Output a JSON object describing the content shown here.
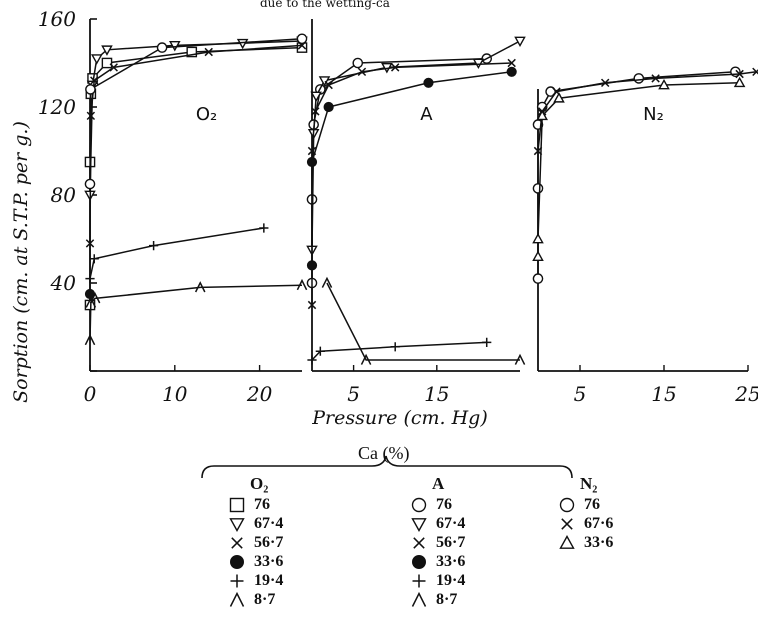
{
  "header_fragment": "due to the wetting-ca",
  "chart_data": {
    "type": "scatter",
    "ylabel": "Sorption (cm. at S.T.P. per g.)",
    "xlabel": "Pressure (cm. Hg)",
    "ylim": [
      0,
      160
    ],
    "yticks": [
      0,
      40,
      80,
      120,
      160
    ],
    "grid": false,
    "panels": [
      {
        "label": "O₂",
        "gas": "O2",
        "xlim": [
          0,
          25
        ],
        "xticks": [
          0,
          10,
          20
        ],
        "series": [
          {
            "name": "76",
            "marker": "square",
            "points": [
              [
                0,
                30
              ],
              [
                0,
                95
              ],
              [
                0.1,
                126
              ],
              [
                0.3,
                133
              ],
              [
                2,
                140
              ],
              [
                12,
                145
              ],
              [
                25,
                147
              ]
            ]
          },
          {
            "name": "67·4",
            "marker": "triangle-down",
            "points": [
              [
                0,
                80
              ],
              [
                0.3,
                130
              ],
              [
                0.8,
                142
              ],
              [
                2,
                146
              ],
              [
                10,
                148
              ],
              [
                18,
                149
              ],
              [
                25,
                150
              ]
            ]
          },
          {
            "name": "56·7",
            "marker": "cross",
            "points": [
              [
                0,
                58
              ],
              [
                0.1,
                116
              ],
              [
                0.5,
                132
              ],
              [
                2.8,
                138
              ],
              [
                14,
                145
              ],
              [
                25,
                148
              ]
            ]
          },
          {
            "name": "33·6",
            "marker": "filled-circle",
            "points": [
              [
                0,
                35
              ]
            ]
          },
          {
            "name": "19·4",
            "marker": "plus",
            "points": [
              [
                0,
                42
              ],
              [
                0.5,
                51
              ],
              [
                7.5,
                57
              ],
              [
                20.5,
                65
              ]
            ]
          },
          {
            "name": "8·7",
            "marker": "lambda",
            "points": [
              [
                0,
                14
              ],
              [
                0.1,
                31
              ],
              [
                0.6,
                33
              ],
              [
                13,
                38
              ],
              [
                25,
                39
              ]
            ]
          },
          {
            "name": "76",
            "marker": "circle",
            "points": [
              [
                0,
                85
              ],
              [
                0.05,
                128
              ],
              [
                8.5,
                147
              ],
              [
                25,
                151
              ]
            ]
          }
        ]
      },
      {
        "label": "A",
        "gas": "A",
        "xlim": [
          0,
          25
        ],
        "xticks": [
          5,
          15
        ],
        "series": [
          {
            "name": "76",
            "marker": "circle",
            "points": [
              [
                0,
                40
              ],
              [
                0,
                78
              ],
              [
                0.2,
                112
              ],
              [
                1,
                128
              ],
              [
                5.5,
                140
              ],
              [
                21,
                142
              ]
            ]
          },
          {
            "name": "67·4",
            "marker": "triangle-down",
            "points": [
              [
                0,
                55
              ],
              [
                0.2,
                108
              ],
              [
                0.5,
                125
              ],
              [
                1.5,
                132
              ],
              [
                9,
                138
              ],
              [
                20,
                140
              ],
              [
                25,
                150
              ]
            ]
          },
          {
            "name": "56·7",
            "marker": "cross",
            "points": [
              [
                0,
                30
              ],
              [
                0,
                100
              ],
              [
                0.4,
                118
              ],
              [
                2,
                130
              ],
              [
                6,
                136
              ],
              [
                10,
                138
              ],
              [
                24,
                140
              ]
            ]
          },
          {
            "name": "33·6",
            "marker": "filled-circle",
            "points": [
              [
                0,
                48
              ],
              [
                0,
                95
              ],
              [
                2,
                120
              ],
              [
                14,
                131
              ],
              [
                24,
                136
              ]
            ]
          },
          {
            "name": "19·4",
            "marker": "plus",
            "points": [
              [
                0,
                5
              ],
              [
                1,
                9
              ],
              [
                10,
                11
              ],
              [
                21,
                13
              ]
            ]
          },
          {
            "name": "8·7",
            "marker": "lambda",
            "points": [
              [
                1.8,
                40
              ],
              [
                6.5,
                5
              ],
              [
                25,
                5
              ]
            ]
          }
        ]
      },
      {
        "label": "N₂",
        "gas": "N2",
        "xlim": [
          0,
          25
        ],
        "xticks": [
          5,
          15,
          25
        ],
        "series": [
          {
            "name": "76",
            "marker": "circle",
            "points": [
              [
                0,
                42
              ],
              [
                0,
                83
              ],
              [
                0,
                112
              ],
              [
                0.5,
                120
              ],
              [
                1.5,
                127
              ],
              [
                12,
                133
              ],
              [
                23.5,
                136
              ]
            ]
          },
          {
            "name": "67·6",
            "marker": "cross",
            "points": [
              [
                0,
                100
              ],
              [
                0.5,
                118
              ],
              [
                2.2,
                127
              ],
              [
                8,
                131
              ],
              [
                14,
                133
              ],
              [
                24,
                135
              ],
              [
                26,
                136
              ]
            ]
          },
          {
            "name": "33·6",
            "marker": "triangle",
            "points": [
              [
                0,
                52
              ],
              [
                0,
                60
              ],
              [
                0.5,
                116
              ],
              [
                2.5,
                124
              ],
              [
                15,
                130
              ],
              [
                24,
                131
              ]
            ]
          }
        ]
      }
    ]
  },
  "legend": {
    "title": "Ca (%)",
    "columns": [
      {
        "header": "O₂",
        "entries": [
          {
            "marker": "square",
            "label": "76"
          },
          {
            "marker": "triangle-down",
            "label": "67·4"
          },
          {
            "marker": "cross",
            "label": "56·7"
          },
          {
            "marker": "filled-circle",
            "label": "33·6"
          },
          {
            "marker": "plus",
            "label": "19·4"
          },
          {
            "marker": "lambda",
            "label": "8·7"
          }
        ]
      },
      {
        "header": "A",
        "entries": [
          {
            "marker": "circle",
            "label": "76"
          },
          {
            "marker": "triangle-down",
            "label": "67·4"
          },
          {
            "marker": "cross",
            "label": "56·7"
          },
          {
            "marker": "filled-circle",
            "label": "33·6"
          },
          {
            "marker": "plus",
            "label": "19·4"
          },
          {
            "marker": "lambda",
            "label": "8·7"
          }
        ]
      },
      {
        "header": "N₂",
        "entries": [
          {
            "marker": "circle",
            "label": "76"
          },
          {
            "marker": "cross",
            "label": "67·6"
          },
          {
            "marker": "triangle",
            "label": "33·6"
          }
        ]
      }
    ]
  }
}
